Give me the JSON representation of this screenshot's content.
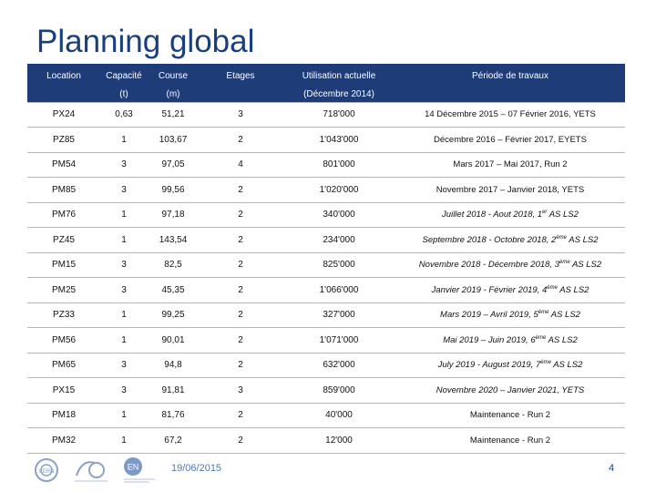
{
  "title": "Planning global",
  "headers": {
    "location": "Location",
    "capacite": "Capacité",
    "capacite_unit": "(t)",
    "course": "Course",
    "course_unit": "(m)",
    "etages": "Etages",
    "utilisation": "Utilisation actuelle",
    "utilisation_sub": "(Décembre 2014)",
    "periode": "Période de travaux"
  },
  "rows": [
    {
      "location": "PX24",
      "capacite": "0,63",
      "course": "51,21",
      "etages": "3",
      "utilisation": "718'000",
      "periode": "14 Décembre 2015 – 07 Février 2016, YETS",
      "ord": "",
      "suffix": "",
      "italic": false
    },
    {
      "location": "PZ85",
      "capacite": "1",
      "course": "103,67",
      "etages": "2",
      "utilisation": "1'043'000",
      "periode": "Décembre 2016 – Février 2017, EYETS",
      "ord": "",
      "suffix": "",
      "italic": false
    },
    {
      "location": "PM54",
      "capacite": "3",
      "course": "97,05",
      "etages": "4",
      "utilisation": "801'000",
      "periode": "Mars 2017 – Mai 2017, Run 2",
      "ord": "",
      "suffix": "",
      "italic": false
    },
    {
      "location": "PM85",
      "capacite": "3",
      "course": "99,56",
      "etages": "2",
      "utilisation": "1'020'000",
      "periode": "Novembre 2017 – Janvier 2018, YETS",
      "ord": "",
      "suffix": "",
      "italic": false
    },
    {
      "location": "PM76",
      "capacite": "1",
      "course": "97,18",
      "etages": "2",
      "utilisation": "340'000",
      "periode": "Juillet 2018 - Aout 2018, 1",
      "ord": "er",
      "suffix": " AS LS2",
      "italic": true
    },
    {
      "location": "PZ45",
      "capacite": "1",
      "course": "143,54",
      "etages": "2",
      "utilisation": "234'000",
      "periode": "Septembre 2018 - Octobre 2018, 2",
      "ord": "ème",
      "suffix": " AS LS2",
      "italic": true
    },
    {
      "location": "PM15",
      "capacite": "3",
      "course": "82,5",
      "etages": "2",
      "utilisation": "825'000",
      "periode": "Novembre 2018 - Décembre 2018, 3",
      "ord": "ème",
      "suffix": " AS LS2",
      "italic": true
    },
    {
      "location": "PM25",
      "capacite": "3",
      "course": "45,35",
      "etages": "2",
      "utilisation": "1'066'000",
      "periode": "Janvier 2019 - Février 2019, 4",
      "ord": "ème",
      "suffix": " AS LS2",
      "italic": true
    },
    {
      "location": "PZ33",
      "capacite": "1",
      "course": "99,25",
      "etages": "2",
      "utilisation": "327'000",
      "periode": "Mars 2019 – Avril 2019, 5",
      "ord": "ème",
      "suffix": " AS LS2",
      "italic": true
    },
    {
      "location": "PM56",
      "capacite": "1",
      "course": "90,01",
      "etages": "2",
      "utilisation": "1'071'000",
      "periode": "Mai 2019 – Juin 2019, 6",
      "ord": "ème",
      "suffix": " AS LS2",
      "italic": true
    },
    {
      "location": "PM65",
      "capacite": "3",
      "course": "94,8",
      "etages": "2",
      "utilisation": "632'000",
      "periode": "July 2019 - August 2019, 7",
      "ord": "ème",
      "suffix": " AS LS2",
      "italic": true
    },
    {
      "location": "PX15",
      "capacite": "3",
      "course": "91,81",
      "etages": "3",
      "utilisation": "859'000",
      "periode": "Novembre 2020 – Janvier 2021, YETS",
      "ord": "",
      "suffix": "",
      "italic": true
    },
    {
      "location": "PM18",
      "capacite": "1",
      "course": "81,76",
      "etages": "2",
      "utilisation": "40'000",
      "periode": "Maintenance - Run 2",
      "ord": "",
      "suffix": "",
      "italic": false
    },
    {
      "location": "PM32",
      "capacite": "1",
      "course": "67,2",
      "etages": "2",
      "utilisation": "12'000",
      "periode": "Maintenance - Run 2",
      "ord": "",
      "suffix": "",
      "italic": false
    }
  ],
  "footer": {
    "date": "19/06/2015",
    "page": "4",
    "logos": [
      "cern-logo",
      "cern-60-years-logo",
      "en-department-logo"
    ]
  },
  "colors": {
    "header_bg": "#1e3c78",
    "title": "#1a3f7d"
  }
}
